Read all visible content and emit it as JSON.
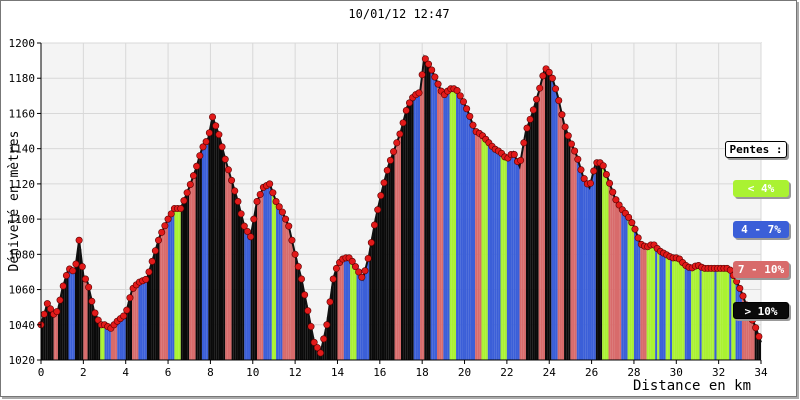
{
  "chart_data": {
    "type": "area",
    "title": "10/01/12 12:47",
    "xlabel": "Distance en km",
    "ylabel": "Dénivelé en mètres",
    "xlim": [
      0,
      34
    ],
    "ylim": [
      1020,
      1200
    ],
    "xticks": [
      0,
      2,
      4,
      6,
      8,
      10,
      12,
      14,
      16,
      18,
      20,
      22,
      24,
      26,
      28,
      30,
      32,
      34
    ],
    "yticks": [
      1020,
      1040,
      1060,
      1080,
      1100,
      1120,
      1140,
      1160,
      1180,
      1200
    ],
    "grid": true,
    "colors": {
      "fill_under_4": "#aaf232",
      "fill_4_7": "#3b5fd8",
      "fill_7_10": "#d86b6b",
      "fill_over_10": "#0a0a0a",
      "marker": "#e21a1a",
      "plot_background": "#f4f4f4"
    },
    "legend": {
      "position": "right",
      "title": "Pentes :",
      "items": [
        {
          "label": "< 4%",
          "color": "#aaf232"
        },
        {
          "label": "4 - 7%",
          "color": "#3b5fd8"
        },
        {
          "label": "7 - 10%",
          "color": "#d86b6b"
        },
        {
          "label": "> 10%",
          "color": "#0a0a0a"
        }
      ]
    },
    "x": [
      0,
      0.3,
      0.6,
      0.8,
      1.0,
      1.3,
      1.6,
      1.8,
      2.0,
      2.2,
      2.5,
      2.8,
      3.0,
      3.3,
      3.6,
      4.0,
      4.3,
      4.6,
      5.0,
      5.3,
      5.6,
      6.0,
      6.3,
      6.6,
      7.0,
      7.3,
      7.6,
      7.9,
      8.1,
      8.4,
      8.7,
      9.0,
      9.3,
      9.6,
      9.9,
      10.2,
      10.5,
      10.8,
      11.1,
      11.4,
      11.7,
      12.0,
      12.3,
      12.6,
      12.9,
      13.2,
      13.5,
      13.8,
      14.0,
      14.3,
      14.6,
      14.9,
      15.2,
      15.5,
      15.8,
      16.1,
      16.4,
      16.7,
      17.0,
      17.3,
      17.6,
      17.9,
      18.1,
      18.4,
      18.7,
      19.0,
      19.3,
      19.6,
      19.9,
      20.2,
      20.5,
      20.8,
      21.1,
      21.4,
      21.7,
      22.0,
      22.3,
      22.6,
      22.9,
      23.2,
      23.5,
      23.8,
      24.1,
      24.4,
      24.7,
      25.0,
      25.3,
      25.6,
      25.9,
      26.2,
      26.5,
      26.8,
      27.1,
      27.4,
      27.7,
      28.0,
      28.3,
      28.6,
      28.9,
      29.2,
      29.5,
      29.8,
      30.1,
      30.4,
      30.7,
      31.0,
      31.3,
      31.6,
      31.9,
      32.2,
      32.5,
      32.8,
      33.1,
      33.4,
      33.7,
      34.0
    ],
    "values": [
      1040,
      1052,
      1046,
      1048,
      1060,
      1072,
      1070,
      1088,
      1068,
      1064,
      1048,
      1040,
      1040,
      1038,
      1042,
      1046,
      1060,
      1064,
      1066,
      1078,
      1090,
      1100,
      1106,
      1106,
      1118,
      1128,
      1140,
      1146,
      1158,
      1148,
      1134,
      1122,
      1110,
      1096,
      1090,
      1110,
      1118,
      1120,
      1110,
      1104,
      1096,
      1080,
      1066,
      1048,
      1030,
      1024,
      1040,
      1066,
      1074,
      1078,
      1078,
      1072,
      1066,
      1080,
      1100,
      1116,
      1130,
      1140,
      1150,
      1164,
      1170,
      1172,
      1192,
      1186,
      1178,
      1170,
      1174,
      1174,
      1168,
      1160,
      1150,
      1148,
      1144,
      1140,
      1138,
      1134,
      1138,
      1130,
      1150,
      1160,
      1172,
      1186,
      1182,
      1170,
      1154,
      1144,
      1136,
      1124,
      1118,
      1132,
      1132,
      1122,
      1112,
      1106,
      1102,
      1096,
      1086,
      1084,
      1086,
      1082,
      1080,
      1078,
      1078,
      1074,
      1072,
      1074,
      1072,
      1072,
      1072,
      1072,
      1072,
      1066,
      1058,
      1048,
      1040,
      1030
    ],
    "slope_classes": [
      3,
      3,
      2,
      3,
      3,
      1,
      3,
      3,
      2,
      3,
      3,
      0,
      1,
      2,
      1,
      3,
      2,
      1,
      3,
      3,
      2,
      1,
      0,
      3,
      2,
      3,
      1,
      3,
      3,
      3,
      2,
      3,
      3,
      1,
      3,
      2,
      1,
      0,
      1,
      2,
      2,
      3,
      3,
      3,
      3,
      3,
      3,
      3,
      2,
      1,
      0,
      1,
      1,
      3,
      3,
      3,
      3,
      2,
      3,
      3,
      1,
      2,
      3,
      1,
      2,
      1,
      0,
      1,
      1,
      1,
      2,
      0,
      1,
      1,
      0,
      1,
      1,
      2,
      3,
      3,
      2,
      3,
      1,
      2,
      3,
      2,
      1,
      1,
      1,
      3,
      0,
      2,
      2,
      1,
      0,
      1,
      2,
      0,
      0,
      1,
      0,
      0,
      0,
      1,
      0,
      0,
      0,
      0,
      0,
      0,
      0,
      1,
      2,
      2,
      3,
      3
    ]
  }
}
